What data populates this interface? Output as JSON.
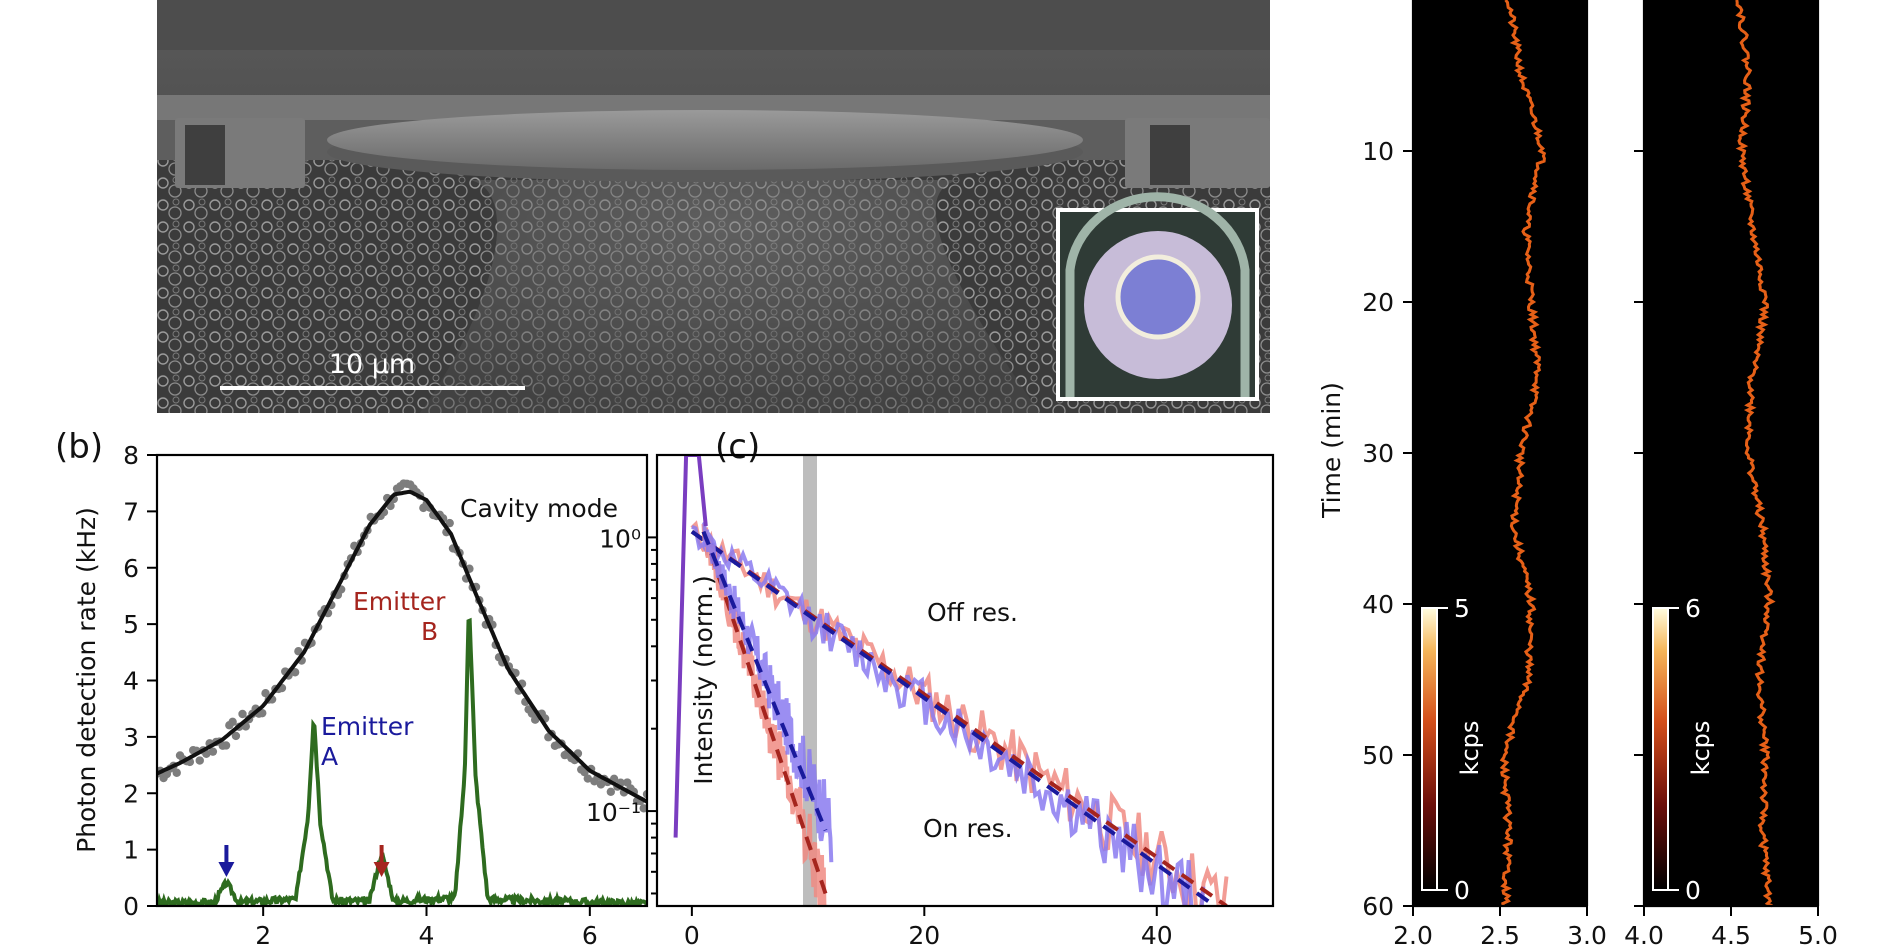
{
  "figure": {
    "sem": {
      "scale_bar_label": "10 µm"
    },
    "panel_b": {
      "label": "(b)",
      "ylabel": "Photon detection rate (kHz)",
      "annotations": {
        "cavity": "Cavity mode",
        "emitter_b_1": "Emitter",
        "emitter_b_2": "B",
        "emitter_a_1": "Emitter",
        "emitter_a_2": "A"
      }
    },
    "panel_c": {
      "label": "(c)",
      "ylabel": "Intensity (norm.)",
      "annotations": {
        "off": "Off res.",
        "on": "On res."
      }
    },
    "panel_d": {
      "ylabel": "Time (min)",
      "colorbar_left": {
        "label": "kcps",
        "max": "5",
        "min": "0"
      },
      "colorbar_right": {
        "label": "kcps",
        "max": "6",
        "min": "0"
      }
    },
    "colors": {
      "cavity": "#111111",
      "emitters": "#2e6b1f",
      "blue": "#1a1a9c",
      "red": "#a5251e",
      "purple": "#7a3dc0",
      "trace": "#ff6a1a",
      "panel_bg": "#000000"
    }
  },
  "chart_data": [
    {
      "id": "b",
      "type": "line",
      "title": "",
      "xlabel": "",
      "ylabel": "Photon detection rate (kHz)",
      "xlim": [
        0.7,
        6.7
      ],
      "ylim": [
        0,
        8
      ],
      "xticks": [
        2,
        4,
        6
      ],
      "yticks": [
        0,
        1,
        2,
        3,
        4,
        5,
        6,
        7,
        8
      ],
      "series": [
        {
          "kind": "lorentzian_fit",
          "color": "#111111",
          "x": [
            0.7,
            1.0,
            1.5,
            2.0,
            2.5,
            3.0,
            3.3,
            3.6,
            3.8,
            4.0,
            4.3,
            4.6,
            5.0,
            5.5,
            6.0,
            6.7
          ],
          "values": [
            2.35,
            2.55,
            2.95,
            3.55,
            4.5,
            5.9,
            6.75,
            7.3,
            7.35,
            7.2,
            6.6,
            5.55,
            4.2,
            3.1,
            2.4,
            1.85
          ]
        },
        {
          "kind": "emission_spectrum",
          "color": "#2e6b1f",
          "x": [
            0.7,
            1.4,
            1.55,
            1.7,
            2.4,
            2.55,
            2.62,
            2.7,
            2.85,
            3.3,
            3.45,
            3.6,
            4.35,
            4.47,
            4.52,
            4.6,
            4.75,
            6.7
          ],
          "values": [
            0.05,
            0.06,
            0.42,
            0.06,
            0.12,
            1.6,
            3.4,
            1.5,
            0.1,
            0.08,
            0.95,
            0.08,
            0.15,
            2.4,
            5.45,
            2.3,
            0.12,
            0.04
          ]
        }
      ],
      "arrows": [
        {
          "x": 1.55,
          "color": "#1a1a9c"
        },
        {
          "x": 3.45,
          "color": "#a5251e"
        }
      ]
    },
    {
      "id": "c",
      "type": "line",
      "title": "",
      "xlabel": "",
      "ylabel": "Intensity (norm.)",
      "y_scale": "log",
      "xlim": [
        -3,
        50
      ],
      "ylim": [
        0.045,
        2.0
      ],
      "xticks": [
        0,
        20,
        40
      ],
      "yticks": [
        0.1,
        1
      ],
      "ytick_labels": [
        "10⁻¹",
        "10⁰"
      ],
      "series": [
        {
          "kind": "off_res_data",
          "color": "#f08b82",
          "x": [
            0,
            46
          ],
          "values": [
            1.05,
            0.045
          ]
        },
        {
          "kind": "off_res_data",
          "color": "#8a7af0",
          "x": [
            0,
            44
          ],
          "values": [
            1.05,
            0.045
          ]
        },
        {
          "kind": "off_res_fit",
          "color": "#a5251e",
          "x": [
            0,
            46
          ],
          "values": [
            1.05,
            0.045
          ]
        },
        {
          "kind": "off_res_fit",
          "color": "#1a1a9c",
          "x": [
            0,
            45
          ],
          "values": [
            1.05,
            0.045
          ]
        },
        {
          "kind": "on_res_data",
          "color": "#f08b82",
          "x": [
            1,
            11.5
          ],
          "values": [
            1.05,
            0.05
          ]
        },
        {
          "kind": "on_res_fit",
          "color": "#a5251e",
          "x": [
            1,
            11.5
          ],
          "values": [
            1.05,
            0.05
          ]
        },
        {
          "kind": "on_res_data",
          "color": "#8a7af0",
          "x": [
            1,
            12
          ],
          "values": [
            1.05,
            0.085
          ]
        },
        {
          "kind": "on_res_fit",
          "color": "#1a1a9c",
          "x": [
            1,
            11.5
          ],
          "values": [
            1.05,
            0.085
          ]
        },
        {
          "kind": "laser_pulse",
          "color": "#7a3dc0",
          "x": [
            -1.4,
            -0.5,
            0.6,
            1.2
          ],
          "values": [
            0.08,
            2.0,
            2.0,
            1.1
          ]
        }
      ]
    },
    {
      "id": "d",
      "type": "heatmap",
      "title": "",
      "ylabel": "Time (min)",
      "ylim": [
        60,
        0
      ],
      "yticks": [
        10,
        20,
        30,
        40,
        50,
        60
      ],
      "panels": [
        {
          "xlim": [
            2.0,
            3.0
          ],
          "xticks": [
            "2.0",
            "2.5",
            "3.0"
          ],
          "colorbar_max": 5,
          "trace_t": [
            0,
            5,
            10,
            15,
            20,
            25,
            30,
            35,
            40,
            45,
            50,
            55,
            60
          ],
          "trace_x": [
            2.55,
            2.62,
            2.75,
            2.65,
            2.68,
            2.72,
            2.62,
            2.58,
            2.68,
            2.66,
            2.52,
            2.55,
            2.53
          ]
        },
        {
          "xlim": [
            4.0,
            5.0
          ],
          "xticks": [
            "4.0",
            "4.5",
            "5.0"
          ],
          "colorbar_max": 6,
          "trace_t": [
            0,
            5,
            10,
            15,
            20,
            25,
            30,
            35,
            40,
            45,
            50,
            55,
            60
          ],
          "trace_x": [
            4.55,
            4.6,
            4.56,
            4.62,
            4.7,
            4.62,
            4.6,
            4.68,
            4.72,
            4.66,
            4.7,
            4.68,
            4.72
          ]
        }
      ]
    }
  ]
}
